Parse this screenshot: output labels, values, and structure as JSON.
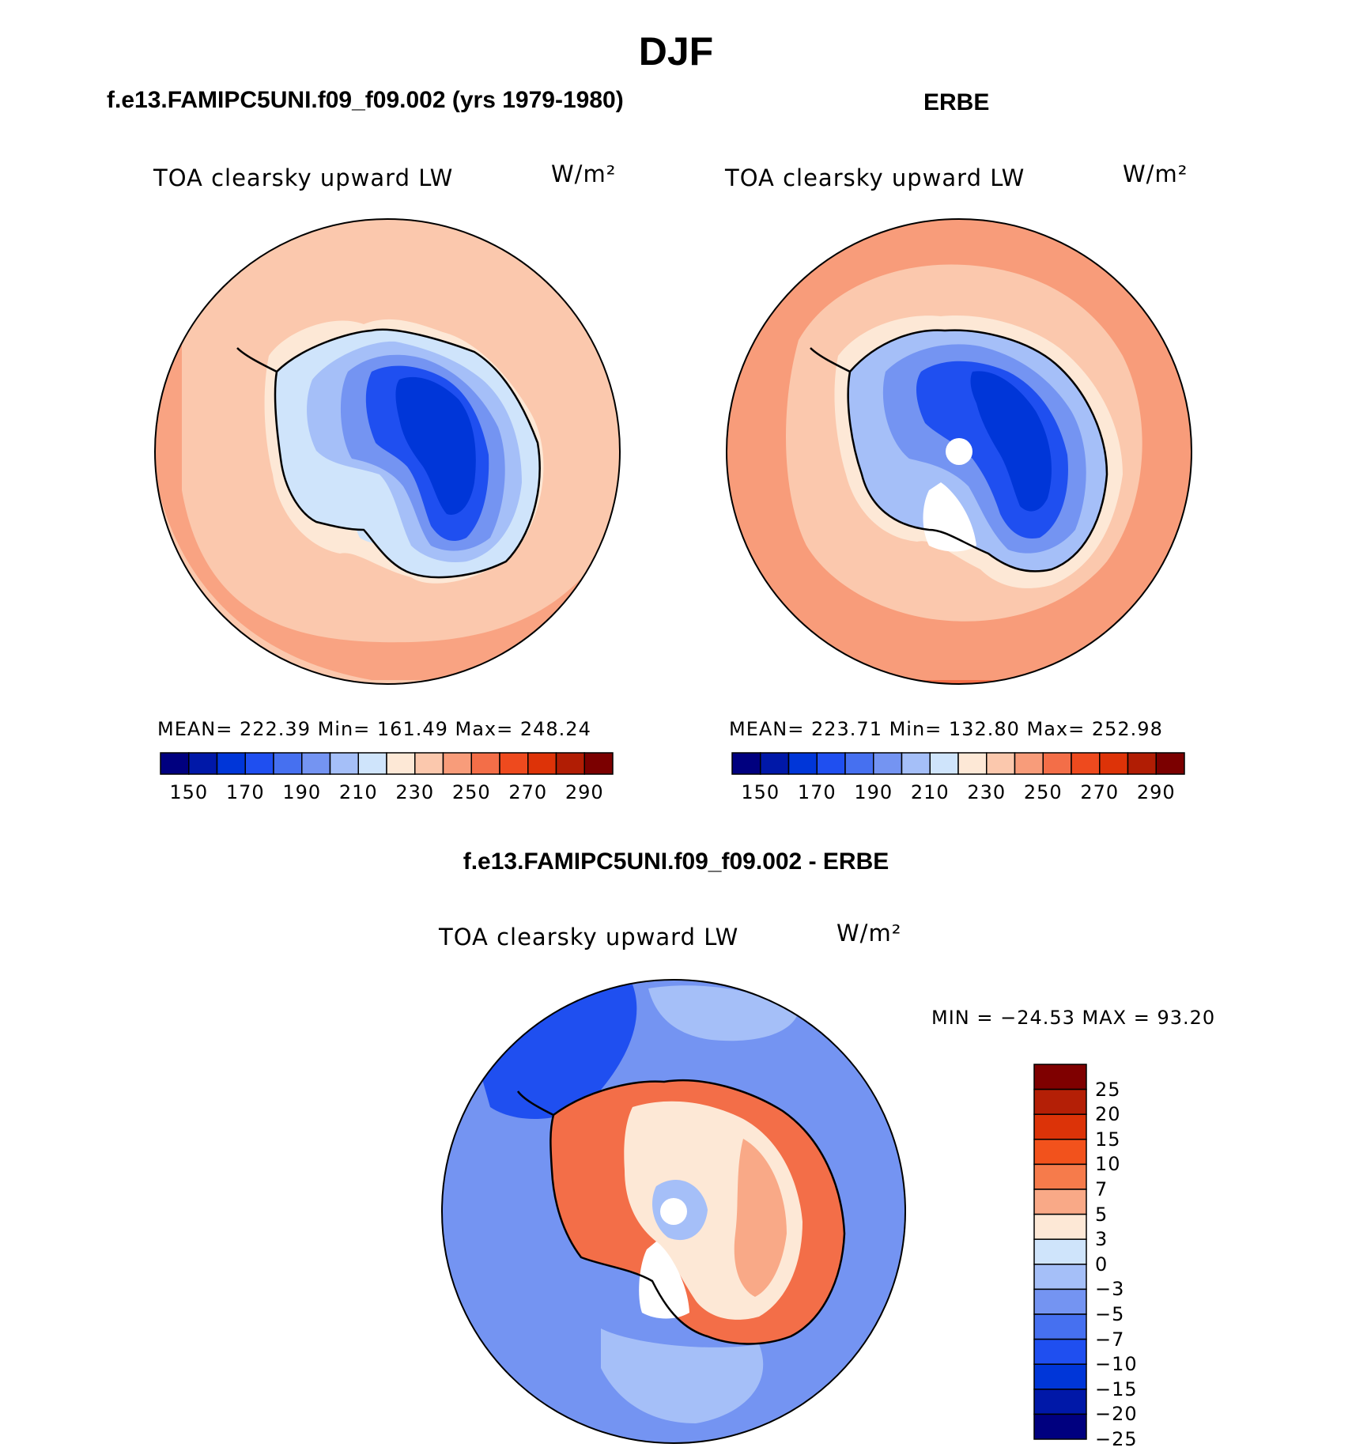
{
  "figure": {
    "title": "DJF",
    "diff_title": "f.e13.FAMIPC5UNI.f09_f09.002 - ERBE"
  },
  "panels": {
    "model": {
      "title": "f.e13.FAMIPC5UNI.f09_f09.002 (yrs 1979-1980)",
      "variable": "TOA clearsky upward LW",
      "units": "W/m²",
      "stats": "MEAN=  222.39    Min=  161.49    Max=  248.24"
    },
    "obs": {
      "title": "ERBE",
      "variable": "TOA clearsky upward LW",
      "units": "W/m²",
      "stats": "MEAN=  223.71    Min=  132.80    Max=  252.98"
    },
    "diff": {
      "variable": "TOA clearsky upward LW",
      "units": "W/m²",
      "stats": "MIN  =  −24.53  MAX  =     93.20"
    }
  },
  "colorbars": {
    "abs": {
      "colors": [
        "#00007f",
        "#0018a8",
        "#0036d8",
        "#1f4ff0",
        "#4670f0",
        "#7494f2",
        "#a5bff8",
        "#cfe4fb",
        "#fde8d6",
        "#fbc8ad",
        "#f89c7a",
        "#f36e48",
        "#ee4a1e",
        "#dd3308",
        "#b11d04",
        "#7b0000"
      ],
      "tick_labels": [
        "150",
        "170",
        "190",
        "210",
        "230",
        "250",
        "270",
        "290"
      ]
    },
    "diff": {
      "colors": [
        "#7f0000",
        "#b41f06",
        "#dc3308",
        "#f2521c",
        "#f67b4b",
        "#f9a987",
        "#fde8d6",
        "#cfe4fb",
        "#a5bff8",
        "#7494f2",
        "#4670f0",
        "#1f4ff0",
        "#0036d8",
        "#0018a8",
        "#00007f"
      ],
      "tick_labels": [
        "25",
        "20",
        "15",
        "10",
        "7",
        "5",
        "3",
        "0",
        "−3",
        "−5",
        "−7",
        "−10",
        "−15",
        "−20",
        "−25"
      ]
    }
  },
  "map_colors": {
    "model_ocean": "#fbc8ad",
    "model_ocean_warm": "#f89c7a",
    "model_ice1": "#cfe4fb",
    "model_ice2": "#a5bff8",
    "model_ice3": "#7494f2",
    "model_ice4": "#1f4ff0",
    "model_ice5": "#0036d8",
    "obs_ocean": "#f89c7a",
    "obs_ocean_hot": "#f36e48",
    "obs_ocean_cool": "#fbc8ad",
    "diff_ocean": "#7494f2",
    "diff_ocean_light": "#a5bff8",
    "diff_ocean_dark": "#1f4ff0",
    "diff_ant_warm": "#f36e48",
    "diff_ant_light": "#fde8d6",
    "diff_ant_mid": "#f9a987"
  }
}
